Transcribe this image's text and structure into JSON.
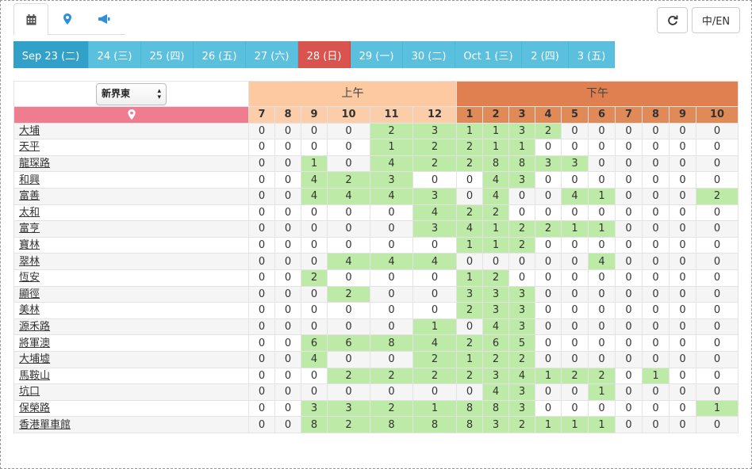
{
  "toolbar": {
    "tabs": [
      {
        "icon": "calendar-icon",
        "active": true
      },
      {
        "icon": "map-pin-icon",
        "active": false
      },
      {
        "icon": "megaphone-icon",
        "active": false
      }
    ],
    "refresh_icon": "refresh-icon",
    "lang_label": "中/EN"
  },
  "date_tabs": [
    {
      "label": "Sep 23 (二)",
      "state": "active"
    },
    {
      "label": "24 (三)",
      "state": "normal"
    },
    {
      "label": "25 (四)",
      "state": "normal"
    },
    {
      "label": "26 (五)",
      "state": "normal"
    },
    {
      "label": "27 (六)",
      "state": "normal"
    },
    {
      "label": "28 (日)",
      "state": "sunday"
    },
    {
      "label": "29 (一)",
      "state": "normal"
    },
    {
      "label": "30 (二)",
      "state": "normal"
    },
    {
      "label": "Oct 1 (三)",
      "state": "normal"
    },
    {
      "label": "2 (四)",
      "state": "normal"
    },
    {
      "label": "3 (五)",
      "state": "normal"
    }
  ],
  "table": {
    "region_selected": "新界東",
    "am_label": "上午",
    "pm_label": "下午",
    "am_hours": [
      "7",
      "8",
      "9",
      "10",
      "11",
      "12"
    ],
    "pm_hours": [
      "1",
      "2",
      "3",
      "4",
      "5",
      "6",
      "7",
      "8",
      "9",
      "10"
    ],
    "rows": [
      {
        "name": "大埔",
        "values": [
          0,
          0,
          0,
          0,
          2,
          3,
          1,
          1,
          3,
          2,
          0,
          0,
          0,
          0,
          0,
          0
        ]
      },
      {
        "name": "天平",
        "values": [
          0,
          0,
          0,
          0,
          1,
          2,
          2,
          1,
          1,
          0,
          0,
          0,
          0,
          0,
          0,
          0
        ]
      },
      {
        "name": "龍琛路",
        "values": [
          0,
          0,
          1,
          0,
          4,
          2,
          2,
          8,
          8,
          3,
          3,
          0,
          0,
          0,
          0,
          0
        ]
      },
      {
        "name": "和興",
        "values": [
          0,
          0,
          4,
          2,
          3,
          0,
          0,
          4,
          3,
          0,
          0,
          0,
          0,
          0,
          0,
          0
        ]
      },
      {
        "name": "富善",
        "values": [
          0,
          0,
          4,
          4,
          4,
          3,
          0,
          4,
          0,
          0,
          4,
          1,
          0,
          0,
          0,
          2
        ]
      },
      {
        "name": "太和",
        "values": [
          0,
          0,
          0,
          0,
          0,
          4,
          2,
          2,
          0,
          0,
          0,
          0,
          0,
          0,
          0,
          0
        ]
      },
      {
        "name": "富亨",
        "values": [
          0,
          0,
          0,
          0,
          0,
          3,
          4,
          1,
          2,
          2,
          1,
          1,
          0,
          0,
          0,
          0
        ]
      },
      {
        "name": "寶林",
        "values": [
          0,
          0,
          0,
          0,
          0,
          0,
          1,
          1,
          2,
          0,
          0,
          0,
          0,
          0,
          0,
          0
        ]
      },
      {
        "name": "翠林",
        "values": [
          0,
          0,
          0,
          4,
          4,
          4,
          0,
          0,
          0,
          0,
          0,
          4,
          0,
          0,
          0,
          0
        ]
      },
      {
        "name": "恆安",
        "values": [
          0,
          0,
          2,
          0,
          0,
          0,
          1,
          2,
          0,
          0,
          0,
          0,
          0,
          0,
          0,
          0
        ]
      },
      {
        "name": "顯徑",
        "values": [
          0,
          0,
          0,
          2,
          0,
          0,
          3,
          3,
          3,
          0,
          0,
          0,
          0,
          0,
          0,
          0
        ]
      },
      {
        "name": "美林",
        "values": [
          0,
          0,
          0,
          0,
          0,
          0,
          2,
          3,
          3,
          0,
          0,
          0,
          0,
          0,
          0,
          0
        ]
      },
      {
        "name": "源禾路",
        "values": [
          0,
          0,
          0,
          0,
          0,
          1,
          0,
          4,
          3,
          0,
          0,
          0,
          0,
          0,
          0,
          0
        ]
      },
      {
        "name": "將軍澳",
        "values": [
          0,
          0,
          6,
          6,
          8,
          4,
          2,
          6,
          5,
          0,
          0,
          0,
          0,
          0,
          0,
          0
        ]
      },
      {
        "name": "大埔墟",
        "values": [
          0,
          0,
          4,
          0,
          0,
          2,
          1,
          2,
          2,
          0,
          0,
          0,
          0,
          0,
          0,
          0
        ]
      },
      {
        "name": "馬鞍山",
        "values": [
          0,
          0,
          0,
          2,
          2,
          2,
          2,
          3,
          4,
          1,
          2,
          2,
          0,
          1,
          0,
          0
        ]
      },
      {
        "name": "坑口",
        "values": [
          0,
          0,
          0,
          0,
          0,
          0,
          0,
          4,
          3,
          0,
          0,
          1,
          0,
          0,
          0,
          0
        ]
      },
      {
        "name": "保榮路",
        "values": [
          0,
          0,
          3,
          3,
          2,
          1,
          8,
          8,
          3,
          0,
          0,
          0,
          0,
          0,
          0,
          1
        ]
      },
      {
        "name": "香港單車館",
        "values": [
          0,
          0,
          8,
          2,
          8,
          8,
          8,
          3,
          2,
          1,
          1,
          1,
          0,
          0,
          0,
          0
        ]
      }
    ]
  }
}
